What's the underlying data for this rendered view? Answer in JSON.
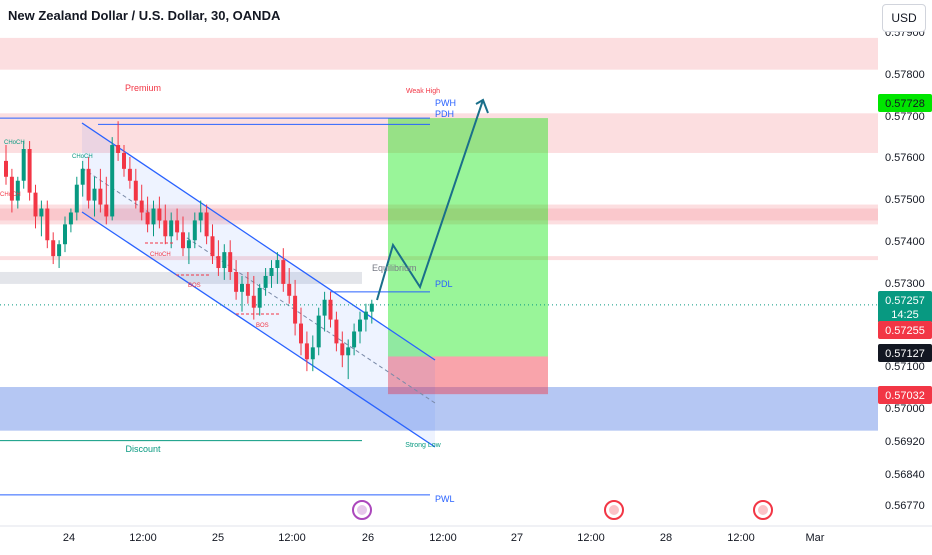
{
  "title": "New Zealand Dollar / U.S. Dollar, 30, OANDA",
  "currency_button": "USD",
  "colors": {
    "bull": "#089981",
    "bear": "#f23645",
    "channel": "#2962ff",
    "long_target": "#00e600",
    "long_stop": "#f23645",
    "supply_zone": "#f7a1a7",
    "demand_zone": "#6b8fe8",
    "equilibrium": "#d1d4dc",
    "arrow": "#1a6f8a"
  },
  "chart_data": {
    "type": "candlestick",
    "symbol": "NZDUSD",
    "timeframe": "30",
    "ylim": [
      0.5674,
      0.5795
    ],
    "y_ticks": [
      "0.57900",
      "0.57800",
      "0.57700",
      "0.57600",
      "0.57500",
      "0.57400",
      "0.57300",
      "0.57100",
      "0.57000",
      "0.56920",
      "0.56840",
      "0.56770"
    ],
    "x_ticks": [
      "24",
      "12:00",
      "25",
      "12:00",
      "26",
      "12:00",
      "27",
      "12:00",
      "28",
      "12:00",
      "Mar"
    ],
    "price_labels": {
      "weak_high": "0.57728",
      "last": "0.57257",
      "countdown": "14:25",
      "bid": "0.57255",
      "low_marker": "0.57127",
      "stop": "0.57032"
    },
    "annotations": {
      "premium": "Premium",
      "weak_high": "Weak High",
      "pwh": "PWH",
      "pdh": "PDH",
      "equilibrium": "Equilibrium",
      "pdl": "PDL",
      "discount": "Discount",
      "strong_low": "Strong Low",
      "pwl": "PWL",
      "choch_1": "CHoCH",
      "choch_2": "CHoCH",
      "choch_3": "CHoCH",
      "choch_4": "CHoCH",
      "bos_1": "BOS",
      "bos_2": "BOS"
    },
    "levels": {
      "pwh": 0.57728,
      "pdh": 0.57712,
      "pdl": 0.5729,
      "pwl": 0.56778,
      "equilibrium": 0.57333,
      "weak_high": 0.57728,
      "strong_low": 0.56915
    },
    "zones": [
      {
        "kind": "supply",
        "y_top": 0.5793,
        "y_bottom": 0.5785
      },
      {
        "kind": "supply",
        "y_top": 0.5774,
        "y_bottom": 0.5764
      },
      {
        "kind": "supply",
        "y_top": 0.5751,
        "y_bottom": 0.5746
      },
      {
        "kind": "supply",
        "y_top": 0.575,
        "y_bottom": 0.5747
      },
      {
        "kind": "supply",
        "y_top": 0.5738,
        "y_bottom": 0.5737
      },
      {
        "kind": "demand",
        "y_top": 0.5705,
        "y_bottom": 0.5694
      }
    ],
    "position": {
      "entry": 0.57127,
      "target": 0.57728,
      "stop": 0.57032
    },
    "candles": [
      [
        0.5762,
        0.5766,
        0.5756,
        0.5758
      ],
      [
        0.5758,
        0.576,
        0.5749,
        0.5752
      ],
      [
        0.5752,
        0.5758,
        0.575,
        0.5757
      ],
      [
        0.5757,
        0.5767,
        0.5755,
        0.5765
      ],
      [
        0.5765,
        0.5767,
        0.5752,
        0.5754
      ],
      [
        0.5754,
        0.5756,
        0.5745,
        0.5748
      ],
      [
        0.5748,
        0.5752,
        0.5743,
        0.575
      ],
      [
        0.575,
        0.5752,
        0.574,
        0.5742
      ],
      [
        0.5742,
        0.5744,
        0.5736,
        0.5738
      ],
      [
        0.5738,
        0.5742,
        0.5735,
        0.5741
      ],
      [
        0.5741,
        0.5748,
        0.5739,
        0.5746
      ],
      [
        0.5746,
        0.575,
        0.5744,
        0.5749
      ],
      [
        0.5749,
        0.5758,
        0.5747,
        0.5756
      ],
      [
        0.5756,
        0.5762,
        0.5753,
        0.576
      ],
      [
        0.576,
        0.5763,
        0.575,
        0.5752
      ],
      [
        0.5752,
        0.5758,
        0.5748,
        0.5755
      ],
      [
        0.5755,
        0.576,
        0.5749,
        0.5751
      ],
      [
        0.5751,
        0.5758,
        0.5746,
        0.5748
      ],
      [
        0.5748,
        0.5768,
        0.5747,
        0.5766
      ],
      [
        0.5766,
        0.5772,
        0.5762,
        0.5764
      ],
      [
        0.5764,
        0.5766,
        0.5758,
        0.576
      ],
      [
        0.576,
        0.5763,
        0.5755,
        0.5757
      ],
      [
        0.5757,
        0.576,
        0.575,
        0.5752
      ],
      [
        0.5752,
        0.5756,
        0.5747,
        0.5749
      ],
      [
        0.5749,
        0.5753,
        0.5744,
        0.5746
      ],
      [
        0.5746,
        0.5752,
        0.5743,
        0.575
      ],
      [
        0.575,
        0.5753,
        0.5745,
        0.5747
      ],
      [
        0.5747,
        0.5751,
        0.5741,
        0.5743
      ],
      [
        0.5743,
        0.5749,
        0.574,
        0.5747
      ],
      [
        0.5747,
        0.575,
        0.5742,
        0.5744
      ],
      [
        0.5744,
        0.5748,
        0.5738,
        0.574
      ],
      [
        0.574,
        0.5744,
        0.5736,
        0.5742
      ],
      [
        0.5742,
        0.5749,
        0.574,
        0.5747
      ],
      [
        0.5747,
        0.5752,
        0.5744,
        0.5749
      ],
      [
        0.5749,
        0.5751,
        0.5741,
        0.5743
      ],
      [
        0.5743,
        0.5746,
        0.5736,
        0.5738
      ],
      [
        0.5738,
        0.5742,
        0.5733,
        0.5735
      ],
      [
        0.5735,
        0.5741,
        0.5732,
        0.5739
      ],
      [
        0.5739,
        0.5742,
        0.5732,
        0.5734
      ],
      [
        0.5734,
        0.5737,
        0.5727,
        0.5729
      ],
      [
        0.5729,
        0.5733,
        0.5724,
        0.5731
      ],
      [
        0.5731,
        0.5734,
        0.5726,
        0.5728
      ],
      [
        0.5728,
        0.5733,
        0.5722,
        0.5725
      ],
      [
        0.5725,
        0.5731,
        0.5723,
        0.573
      ],
      [
        0.573,
        0.5735,
        0.5728,
        0.5733
      ],
      [
        0.5733,
        0.5737,
        0.573,
        0.5735
      ],
      [
        0.5735,
        0.5739,
        0.5731,
        0.5737
      ],
      [
        0.5737,
        0.574,
        0.5729,
        0.5731
      ],
      [
        0.5731,
        0.5735,
        0.5726,
        0.5728
      ],
      [
        0.5728,
        0.5732,
        0.5718,
        0.5721
      ],
      [
        0.5721,
        0.5725,
        0.5713,
        0.5716
      ],
      [
        0.5716,
        0.5719,
        0.5709,
        0.5712
      ],
      [
        0.5712,
        0.5718,
        0.5709,
        0.5715
      ],
      [
        0.5715,
        0.5725,
        0.5713,
        0.5723
      ],
      [
        0.5723,
        0.5729,
        0.5719,
        0.5727
      ],
      [
        0.5727,
        0.5729,
        0.572,
        0.5722
      ],
      [
        0.5722,
        0.5724,
        0.5714,
        0.5716
      ],
      [
        0.5716,
        0.5719,
        0.571,
        0.5713
      ],
      [
        0.5713,
        0.5717,
        0.5707,
        0.5715
      ],
      [
        0.5715,
        0.5721,
        0.5713,
        0.5719
      ],
      [
        0.5719,
        0.5724,
        0.5716,
        0.5722
      ],
      [
        0.5722,
        0.5726,
        0.5719,
        0.5724
      ],
      [
        0.5724,
        0.5727,
        0.5721,
        0.5726
      ]
    ]
  }
}
